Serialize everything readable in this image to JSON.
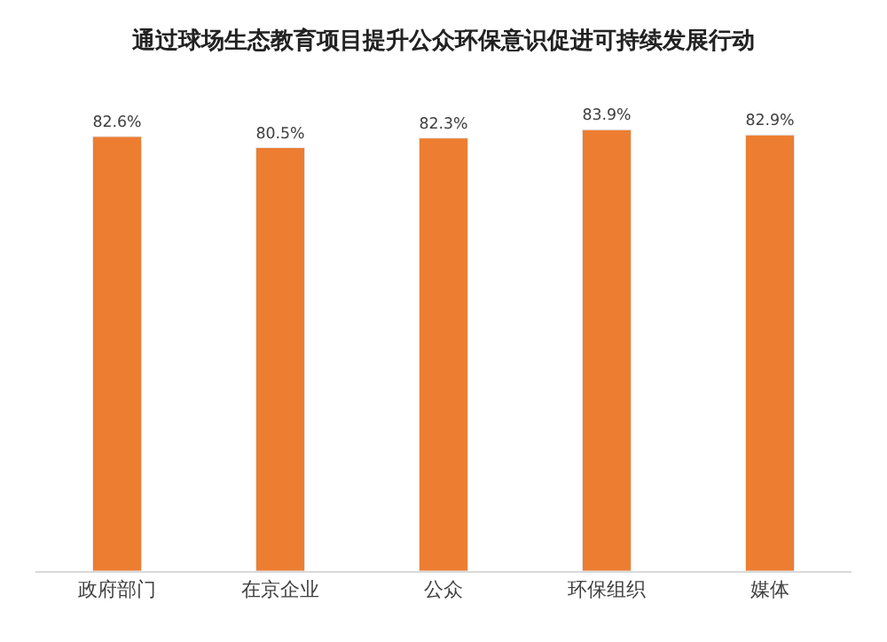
{
  "chart_data": {
    "type": "bar",
    "title": "通过球场生态教育项目提升公众环保意识促进可持续发展行动",
    "categories": [
      "政府部门",
      "在京企业",
      "公众",
      "环保组织",
      "媒体"
    ],
    "values": [
      82.6,
      80.5,
      82.3,
      83.9,
      82.9
    ],
    "value_labels": [
      "82.6%",
      "80.5%",
      "82.3%",
      "83.9%",
      "82.9%"
    ],
    "color": "#ed7d31",
    "tick_labels": "x"
  }
}
